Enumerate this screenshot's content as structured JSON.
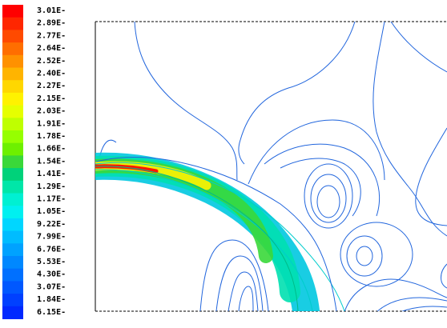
{
  "chart_data": {
    "type": "contour",
    "title": "",
    "xlabel": "",
    "ylabel": "",
    "colorbar": {
      "orientation": "vertical",
      "placement": "left",
      "levels": [
        {
          "label": "3.01E-",
          "color": "#ff0000"
        },
        {
          "label": "2.89E-",
          "color": "#ff2600"
        },
        {
          "label": "2.77E-",
          "color": "#ff4a00"
        },
        {
          "label": "2.64E-",
          "color": "#ff6e00"
        },
        {
          "label": "2.52E-",
          "color": "#ff9100"
        },
        {
          "label": "2.40E-",
          "color": "#ffb400"
        },
        {
          "label": "2.27E-",
          "color": "#ffd700"
        },
        {
          "label": "2.15E-",
          "color": "#fff200"
        },
        {
          "label": "2.03E-",
          "color": "#e6ff00"
        },
        {
          "label": "1.91E-",
          "color": "#bfff00"
        },
        {
          "label": "1.78E-",
          "color": "#96ff00"
        },
        {
          "label": "1.66E-",
          "color": "#6ef000"
        },
        {
          "label": "1.54E-",
          "color": "#3ad83a"
        },
        {
          "label": "1.41E-",
          "color": "#00d27a"
        },
        {
          "label": "1.29E-",
          "color": "#00e6a8"
        },
        {
          "label": "1.17E-",
          "color": "#00f0d2"
        },
        {
          "label": "1.05E-",
          "color": "#00f0f0"
        },
        {
          "label": "9.22E-",
          "color": "#00d6ff"
        },
        {
          "label": "7.99E-",
          "color": "#00bcff"
        },
        {
          "label": "6.76E-",
          "color": "#00a2ff"
        },
        {
          "label": "5.53E-",
          "color": "#0088ff"
        },
        {
          "label": "4.30E-",
          "color": "#0070ff"
        },
        {
          "label": "3.07E-",
          "color": "#0058ff"
        },
        {
          "label": "1.84E-",
          "color": "#0040ff"
        },
        {
          "label": "6.15E-",
          "color": "#0028ff"
        }
      ]
    },
    "jet": {
      "inlet_side": "left",
      "description_colors": [
        "#ff0000",
        "#fff200",
        "#3ad83a",
        "#00f0f0",
        "#0058ff"
      ]
    },
    "line_color": "#2266dd",
    "frame_style": "dashed-top-and-bottom"
  }
}
